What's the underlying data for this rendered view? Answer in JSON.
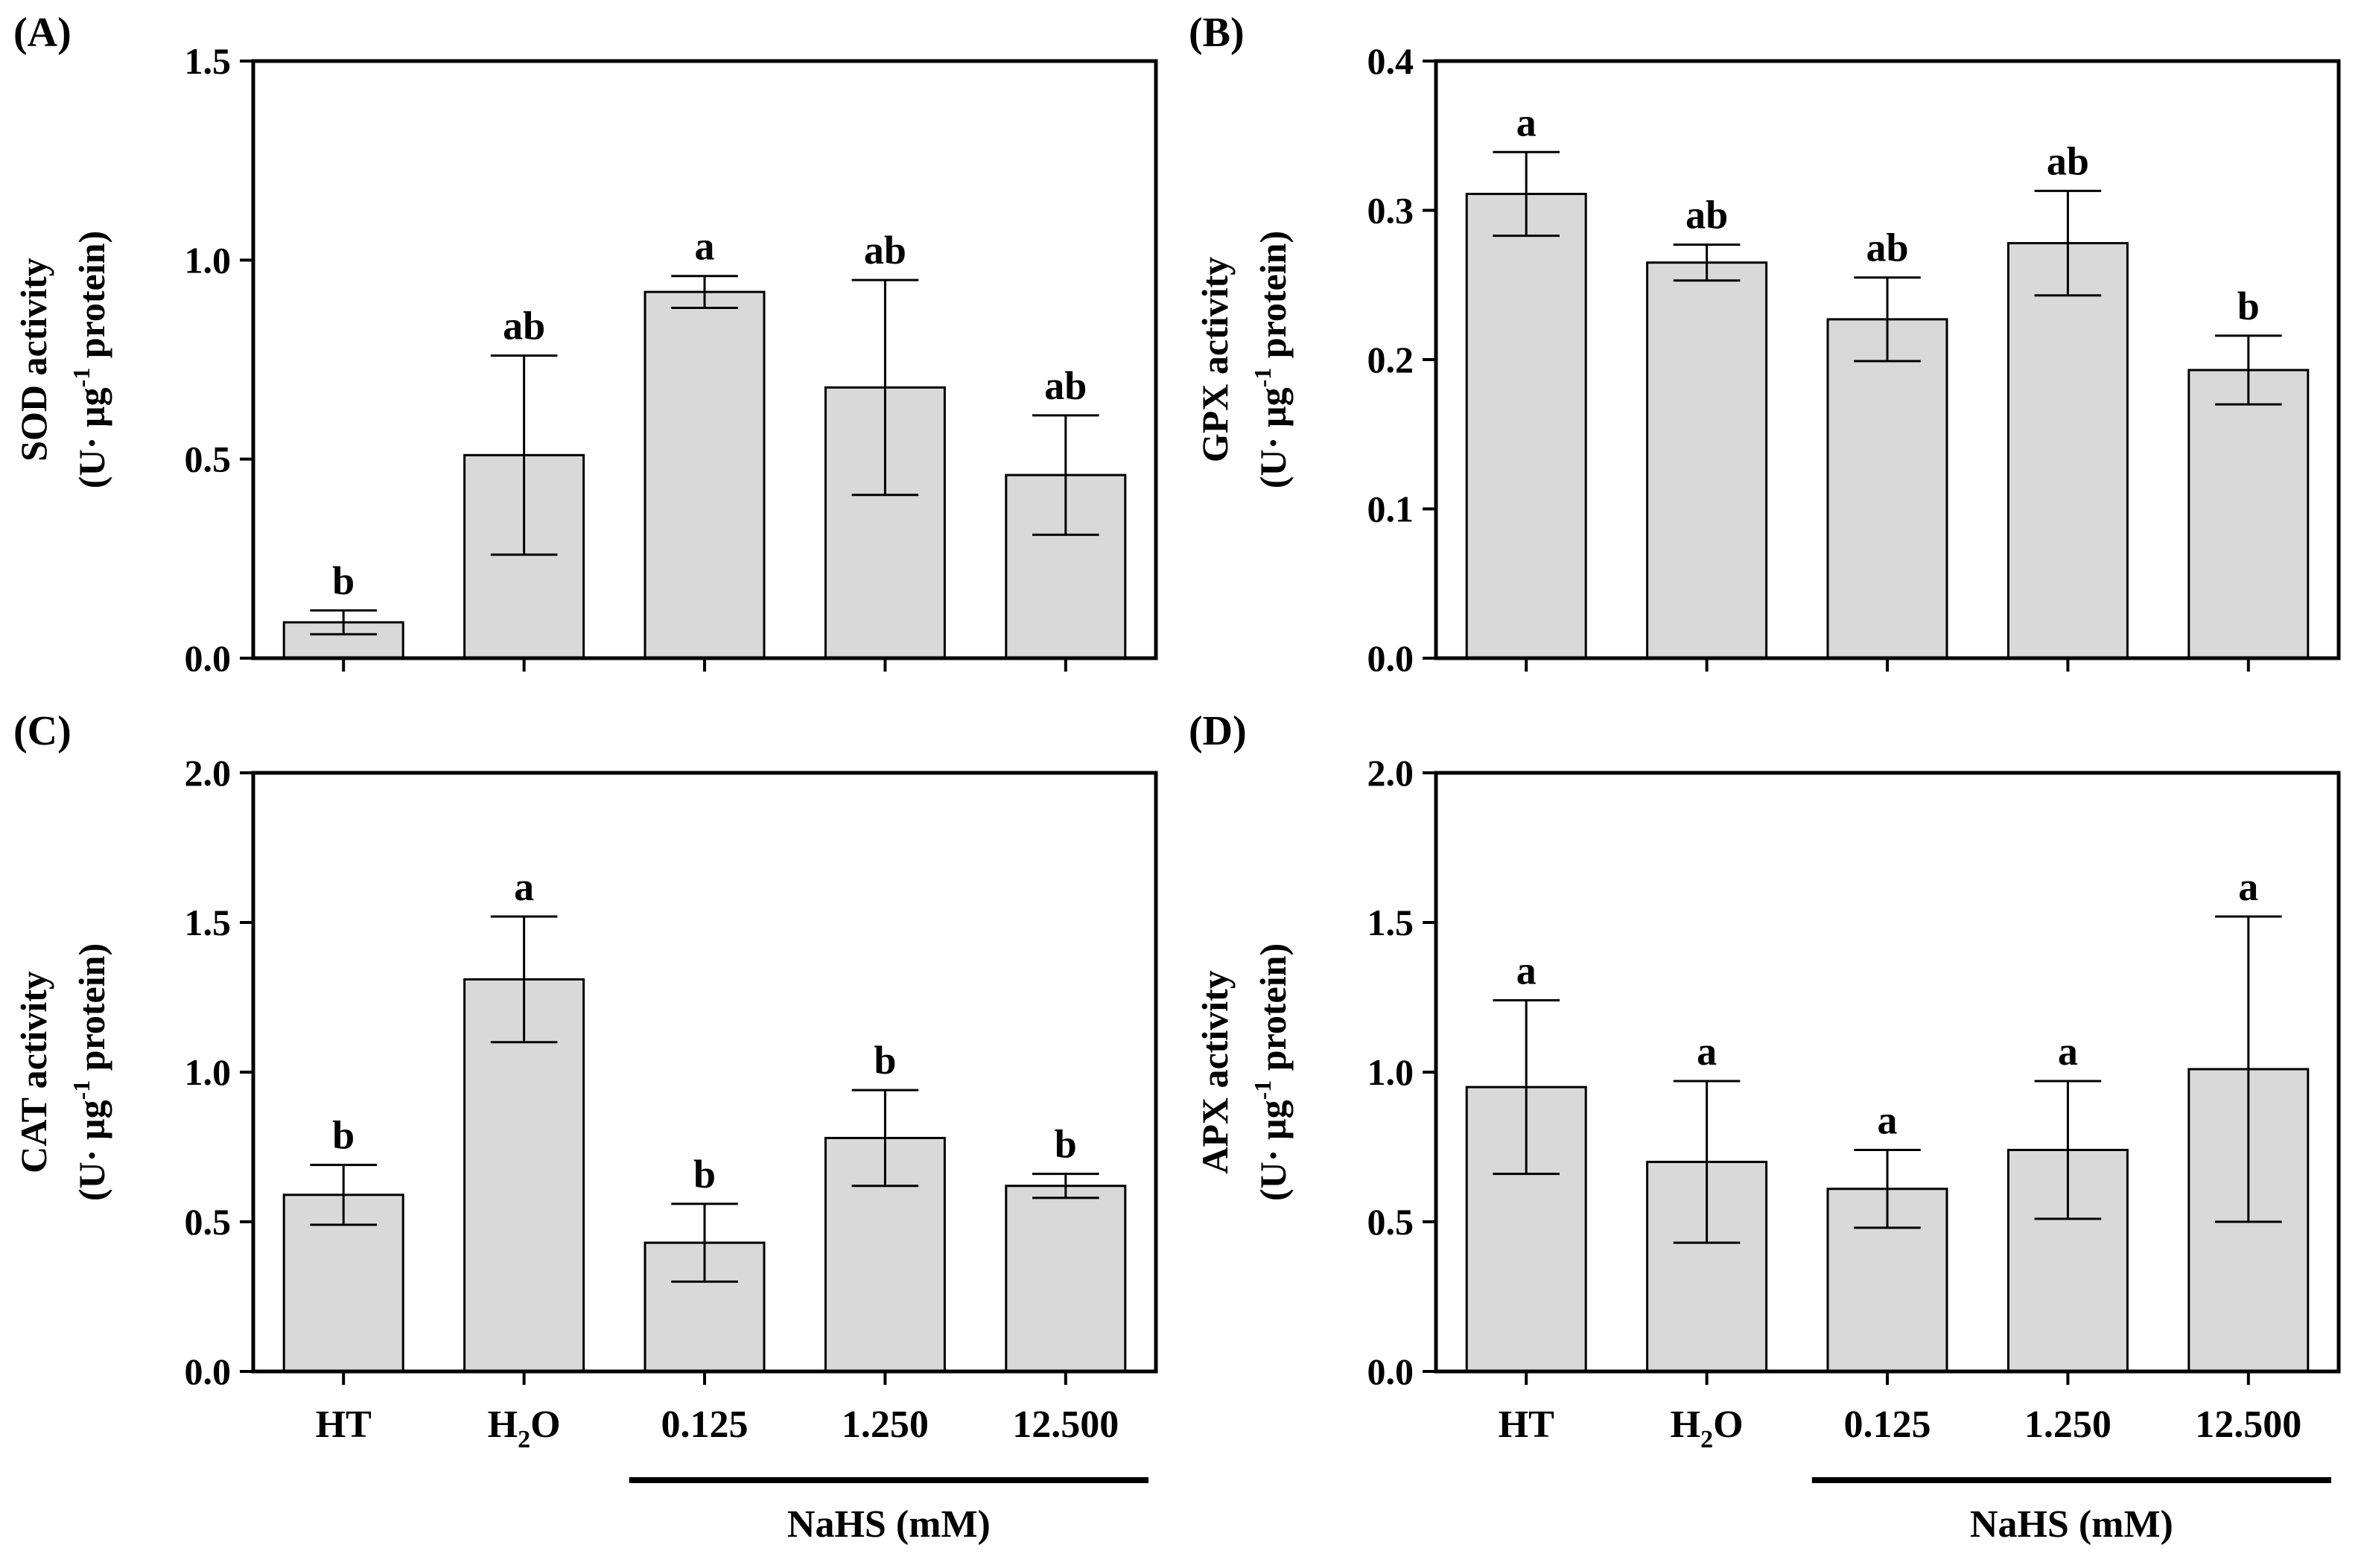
{
  "colors": {
    "bar_fill": "#d9d9d9",
    "stroke": "#000000",
    "background": "#ffffff"
  },
  "shared_x": {
    "categories": [
      "HT",
      "H2O",
      "0.125",
      "1.250",
      "12.500"
    ],
    "category_display": [
      {
        "main": "HT",
        "sub": ""
      },
      {
        "main": "H",
        "sub": "2",
        "tail": "O"
      },
      {
        "main": "0.125",
        "sub": ""
      },
      {
        "main": "1.250",
        "sub": ""
      },
      {
        "main": "12.500",
        "sub": ""
      }
    ],
    "group_label": "NaHS (mM)",
    "group_categories": [
      "0.125",
      "1.250",
      "12.500"
    ]
  },
  "chart_data": [
    {
      "type": "bar",
      "panel": "(A)",
      "ylabel_line1": "SOD activity",
      "ylabel_line2_parts": [
        "(U· µg",
        "-1",
        " protein)"
      ],
      "categories": [
        "HT",
        "H2O",
        "0.125",
        "1.250",
        "12.500"
      ],
      "values": [
        0.09,
        0.51,
        0.92,
        0.68,
        0.46
      ],
      "errors": [
        0.03,
        0.25,
        0.04,
        0.27,
        0.15
      ],
      "letters": [
        "b",
        "ab",
        "a",
        "ab",
        "ab"
      ],
      "ylim": [
        0,
        1.5
      ],
      "yticks": [
        0.0,
        0.5,
        1.0,
        1.5
      ],
      "ytick_labels": [
        "0.0",
        "0.5",
        "1.0",
        "1.5"
      ]
    },
    {
      "type": "bar",
      "panel": "(B)",
      "ylabel_line1": "GPX activity",
      "ylabel_line2_parts": [
        "(U· µg",
        "-1",
        " protein)"
      ],
      "categories": [
        "HT",
        "H2O",
        "0.125",
        "1.250",
        "12.500"
      ],
      "values": [
        0.311,
        0.265,
        0.227,
        0.278,
        0.193
      ],
      "errors": [
        0.028,
        0.012,
        0.028,
        0.035,
        0.023
      ],
      "letters": [
        "a",
        "ab",
        "ab",
        "ab",
        "b"
      ],
      "ylim": [
        0,
        0.4
      ],
      "yticks": [
        0.0,
        0.1,
        0.2,
        0.3,
        0.4
      ],
      "ytick_labels": [
        "0.0",
        "0.1",
        "0.2",
        "0.3",
        "0.4"
      ]
    },
    {
      "type": "bar",
      "panel": "(C)",
      "ylabel_line1": "CAT activity",
      "ylabel_line2_parts": [
        "(U· µg",
        "-1",
        " protein)"
      ],
      "categories": [
        "HT",
        "H2O",
        "0.125",
        "1.250",
        "12.500"
      ],
      "values": [
        0.59,
        1.31,
        0.43,
        0.78,
        0.62
      ],
      "errors": [
        0.1,
        0.21,
        0.13,
        0.16,
        0.04
      ],
      "letters": [
        "b",
        "a",
        "b",
        "b",
        "b"
      ],
      "ylim": [
        0,
        2.0
      ],
      "yticks": [
        0.0,
        0.5,
        1.0,
        1.5,
        2.0
      ],
      "ytick_labels": [
        "0.0",
        "0.5",
        "1.0",
        "1.5",
        "2.0"
      ]
    },
    {
      "type": "bar",
      "panel": "(D)",
      "ylabel_line1": "APX activity",
      "ylabel_line2_parts": [
        "(U· µg",
        "-1",
        " protein)"
      ],
      "categories": [
        "HT",
        "H2O",
        "0.125",
        "1.250",
        "12.500"
      ],
      "values": [
        0.95,
        0.7,
        0.61,
        0.74,
        1.01
      ],
      "errors": [
        0.29,
        0.27,
        0.13,
        0.23,
        0.51
      ],
      "letters": [
        "a",
        "a",
        "a",
        "a",
        "a"
      ],
      "ylim": [
        0,
        2.0
      ],
      "yticks": [
        0.0,
        0.5,
        1.0,
        1.5,
        2.0
      ],
      "ytick_labels": [
        "0.0",
        "0.5",
        "1.0",
        "1.5",
        "2.0"
      ]
    }
  ]
}
